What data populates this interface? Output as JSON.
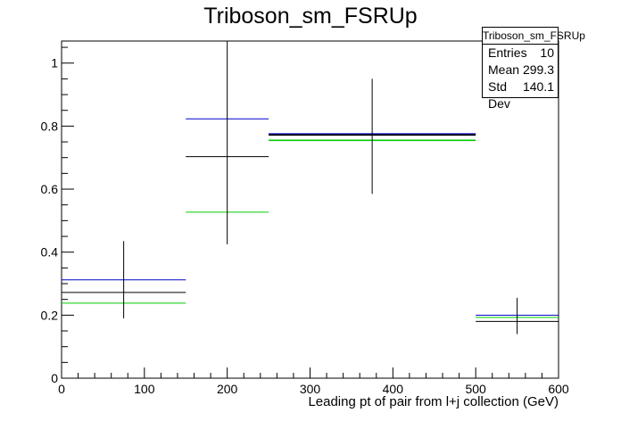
{
  "chart_data": {
    "type": "line",
    "title": "Triboson_sm_FSRUp",
    "xlabel": "Leading pt of pair from l+j collection (GeV)",
    "ylabel": "",
    "xlim": [
      0,
      600
    ],
    "ylim": [
      0,
      1.07
    ],
    "x_ticks": [
      "0",
      "100",
      "200",
      "300",
      "400",
      "500",
      "600"
    ],
    "y_ticks": [
      "0",
      "0.2",
      "0.4",
      "0.6",
      "0.8",
      "1"
    ],
    "bin_edges": [
      0,
      150,
      250,
      500,
      600
    ],
    "series": [
      {
        "color": "#0000cc",
        "values": [
          0.312,
          0.823,
          0.775,
          0.2
        ]
      },
      {
        "color": "#000000",
        "values": [
          0.272,
          0.703,
          0.772,
          0.18
        ]
      },
      {
        "color": "#00cc00",
        "values": [
          0.238,
          0.527,
          0.755,
          0.193
        ]
      }
    ],
    "error_bars": [
      {
        "x": 75,
        "low": 0.19,
        "high": 0.435
      },
      {
        "x": 200,
        "low": 0.425,
        "high": 1.07
      },
      {
        "x": 375,
        "low": 0.585,
        "high": 0.95
      },
      {
        "x": 550,
        "low": 0.14,
        "high": 0.255
      }
    ],
    "grid": false
  },
  "stats": {
    "title": "Triboson_sm_FSRUp",
    "entries_label": "Entries",
    "entries": "10",
    "mean_label": "Mean",
    "mean": "299.3",
    "stddev_label": "Std Dev",
    "stddev": "140.1"
  }
}
